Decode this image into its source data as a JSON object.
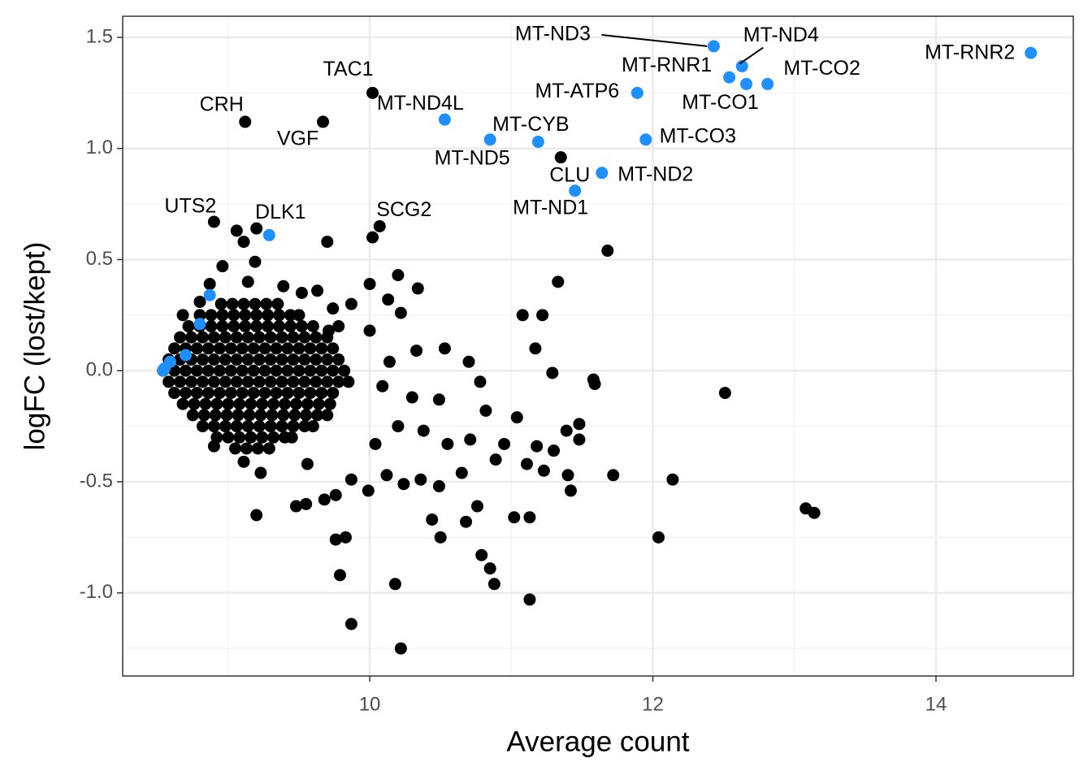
{
  "chart_data": {
    "type": "scatter",
    "x_label": "Average count",
    "y_label": "logFC (lost/kept)",
    "xlim": [
      8.255,
      14.97
    ],
    "ylim": [
      -1.374,
      1.595
    ],
    "xticks": [
      10,
      12,
      14
    ],
    "yticks": [
      {
        "value": -1.0,
        "label": "-1.0"
      },
      -0.5,
      {
        "value": 0,
        "label": "0.0"
      },
      0.5,
      {
        "value": 1.0,
        "label": "1.0"
      },
      1.5
    ],
    "grid": true,
    "series": [
      {
        "color": "#000000",
        "x": [
          9.06,
          9.2,
          9.11,
          9.7,
          10.02,
          9.19,
          8.96,
          11.68,
          10.2,
          11.33,
          10.34,
          11.08,
          11.22,
          11.17,
          11.29,
          11.58,
          11.59,
          12.51,
          10.53,
          10.7,
          10.33,
          10.14,
          10.0,
          10.13,
          10.22,
          9.87,
          10.0,
          10.3,
          10.49,
          10.82,
          11.04,
          11.48,
          11.39,
          11.3,
          11.18,
          11.4,
          11.42,
          11.72,
          12.14,
          13.08,
          13.14,
          12.04,
          11.13,
          11.02,
          10.76,
          10.68,
          10.44,
          10.5,
          10.79,
          10.85,
          10.88,
          11.13,
          10.18,
          10.22,
          9.87,
          9.79,
          9.83,
          9.76,
          9.2,
          9.48,
          9.55,
          9.68,
          9.76,
          9.99,
          10.12,
          10.24,
          10.36,
          10.49,
          10.65,
          10.89,
          11.11,
          11.23,
          9.56,
          9.23,
          9.11,
          8.9,
          9.87,
          10.04,
          10.2,
          10.38,
          10.55,
          10.71,
          10.95,
          11.48,
          10.78,
          10.09,
          8.68,
          8.8,
          8.87,
          9.14,
          9.39,
          9.52,
          9.63,
          9.74,
          9.78,
          9.71,
          8.95,
          9.03,
          9.11,
          9.19,
          9.27,
          9.35,
          8.8,
          8.88,
          8.96,
          9.04,
          9.12,
          9.2,
          9.28,
          9.36,
          9.44,
          9.5,
          8.72,
          8.8,
          8.88,
          8.96,
          9.04,
          9.12,
          9.2,
          9.28,
          9.36,
          9.44,
          9.52,
          9.6,
          8.66,
          8.74,
          8.82,
          8.9,
          8.98,
          9.06,
          9.14,
          9.22,
          9.3,
          9.38,
          9.46,
          9.54,
          9.62,
          9.7,
          8.62,
          8.7,
          8.78,
          8.86,
          8.94,
          9.02,
          9.1,
          9.18,
          9.26,
          9.34,
          9.42,
          9.5,
          9.58,
          9.66,
          9.74,
          8.58,
          8.66,
          8.74,
          8.82,
          8.9,
          8.98,
          9.06,
          9.14,
          9.22,
          9.3,
          9.38,
          9.46,
          9.54,
          9.62,
          9.7,
          9.78,
          8.54,
          8.62,
          8.7,
          8.78,
          8.86,
          8.94,
          9.02,
          9.1,
          9.18,
          9.26,
          9.34,
          9.42,
          9.5,
          9.58,
          9.66,
          9.74,
          9.82,
          8.58,
          8.66,
          8.74,
          8.82,
          8.9,
          8.98,
          9.06,
          9.14,
          9.22,
          9.3,
          9.38,
          9.46,
          9.54,
          9.62,
          9.7,
          9.78,
          9.85,
          8.62,
          8.7,
          8.78,
          8.86,
          8.94,
          9.02,
          9.1,
          9.18,
          9.26,
          9.34,
          9.42,
          9.5,
          9.58,
          9.66,
          9.74,
          8.68,
          8.76,
          8.84,
          8.92,
          9.0,
          9.08,
          9.16,
          9.24,
          9.32,
          9.4,
          9.48,
          9.56,
          9.64,
          9.72,
          8.75,
          8.83,
          8.91,
          8.99,
          9.07,
          9.15,
          9.23,
          9.31,
          9.39,
          9.47,
          9.55,
          9.63,
          9.7,
          8.82,
          8.9,
          8.98,
          9.06,
          9.14,
          9.22,
          9.3,
          9.38,
          9.46,
          9.54,
          9.6,
          8.92,
          9.0,
          9.08,
          9.16,
          9.24,
          9.32,
          9.4,
          9.45,
          9.05,
          9.13,
          9.21,
          9.29
        ],
        "values": [
          0.63,
          0.64,
          0.58,
          0.58,
          0.6,
          0.49,
          0.47,
          0.54,
          0.43,
          0.4,
          0.37,
          0.25,
          0.25,
          0.1,
          -0.01,
          -0.04,
          -0.06,
          -0.1,
          0.1,
          0.04,
          0.09,
          0.04,
          0.39,
          0.32,
          0.26,
          0.3,
          0.18,
          -0.12,
          -0.13,
          -0.18,
          -0.21,
          -0.24,
          -0.27,
          -0.36,
          -0.34,
          -0.47,
          -0.54,
          -0.47,
          -0.49,
          -0.62,
          -0.64,
          -0.75,
          -0.66,
          -0.66,
          -0.61,
          -0.68,
          -0.67,
          -0.75,
          -0.83,
          -0.89,
          -0.96,
          -1.03,
          -0.96,
          -1.25,
          -1.14,
          -0.92,
          -0.75,
          -0.76,
          -0.65,
          -0.61,
          -0.6,
          -0.58,
          -0.56,
          -0.54,
          -0.47,
          -0.51,
          -0.49,
          -0.52,
          -0.46,
          -0.4,
          -0.42,
          -0.45,
          -0.42,
          -0.46,
          -0.41,
          -0.34,
          -0.49,
          -0.33,
          -0.25,
          -0.27,
          -0.33,
          -0.31,
          -0.33,
          -0.31,
          -0.05,
          -0.07,
          0.25,
          0.31,
          0.39,
          0.4,
          0.38,
          0.35,
          0.36,
          0.28,
          0.2,
          0.18,
          0.3,
          0.3,
          0.3,
          0.3,
          0.3,
          0.3,
          0.25,
          0.25,
          0.25,
          0.25,
          0.25,
          0.25,
          0.25,
          0.25,
          0.25,
          0.25,
          0.2,
          0.2,
          0.2,
          0.2,
          0.2,
          0.2,
          0.2,
          0.2,
          0.2,
          0.2,
          0.2,
          0.2,
          0.15,
          0.15,
          0.15,
          0.15,
          0.15,
          0.15,
          0.15,
          0.15,
          0.15,
          0.15,
          0.15,
          0.15,
          0.15,
          0.15,
          0.1,
          0.1,
          0.1,
          0.1,
          0.1,
          0.1,
          0.1,
          0.1,
          0.1,
          0.1,
          0.1,
          0.1,
          0.1,
          0.1,
          0.1,
          0.05,
          0.05,
          0.05,
          0.05,
          0.05,
          0.05,
          0.05,
          0.05,
          0.05,
          0.05,
          0.05,
          0.05,
          0.05,
          0.05,
          0.05,
          0.05,
          0.0,
          0.0,
          0.0,
          0.0,
          0.0,
          0.0,
          0.0,
          0.0,
          0.0,
          0.0,
          0.0,
          0.0,
          0.0,
          0.0,
          0.0,
          0.0,
          0.0,
          -0.05,
          -0.05,
          -0.05,
          -0.05,
          -0.05,
          -0.05,
          -0.05,
          -0.05,
          -0.05,
          -0.05,
          -0.05,
          -0.05,
          -0.05,
          -0.05,
          -0.05,
          -0.05,
          -0.05,
          -0.1,
          -0.1,
          -0.1,
          -0.1,
          -0.1,
          -0.1,
          -0.1,
          -0.1,
          -0.1,
          -0.1,
          -0.1,
          -0.1,
          -0.1,
          -0.1,
          -0.1,
          -0.15,
          -0.15,
          -0.15,
          -0.15,
          -0.15,
          -0.15,
          -0.15,
          -0.15,
          -0.15,
          -0.15,
          -0.15,
          -0.15,
          -0.15,
          -0.15,
          -0.2,
          -0.2,
          -0.2,
          -0.2,
          -0.2,
          -0.2,
          -0.2,
          -0.2,
          -0.2,
          -0.2,
          -0.2,
          -0.2,
          -0.2,
          -0.25,
          -0.25,
          -0.25,
          -0.25,
          -0.25,
          -0.25,
          -0.25,
          -0.25,
          -0.25,
          -0.25,
          -0.25,
          -0.3,
          -0.3,
          -0.3,
          -0.3,
          -0.3,
          -0.3,
          -0.3,
          -0.3,
          -0.35,
          -0.35,
          -0.35,
          -0.35
        ]
      },
      {
        "color": "#000000",
        "x": [
          10.02,
          9.12,
          9.67,
          10.07,
          8.9,
          11.35
        ],
        "values": [
          1.25,
          1.12,
          1.12,
          0.65,
          0.67,
          0.96
        ],
        "labels": [
          "TAC1",
          "CRH",
          "VGF",
          "SCG2",
          "UTS2",
          "CLU"
        ]
      },
      {
        "color": "#1e90ff",
        "x": [
          8.87,
          8.8,
          8.7,
          8.59,
          8.55,
          8.54
        ],
        "values": [
          0.34,
          0.21,
          0.07,
          0.04,
          0.01,
          0.0
        ]
      },
      {
        "color": "#1e90ff",
        "x": [
          12.43,
          12.63,
          12.54,
          12.81,
          12.66,
          11.89,
          14.67,
          10.53,
          10.85,
          11.19,
          11.95,
          11.64,
          11.45,
          9.29
        ],
        "values": [
          1.46,
          1.37,
          1.32,
          1.29,
          1.29,
          1.25,
          1.43,
          1.13,
          1.04,
          1.03,
          1.04,
          0.89,
          0.81,
          0.61
        ],
        "labels": [
          "MT-ND3",
          "MT-ND4",
          "MT-RNR1",
          "MT-CO2",
          "MT-CO1",
          "MT-ATP6",
          "MT-RNR2",
          "MT-ND4L",
          "MT-ND5",
          "MT-CYB",
          "MT-CO3",
          "MT-ND2",
          "MT-ND1",
          "DLK1"
        ]
      }
    ]
  }
}
